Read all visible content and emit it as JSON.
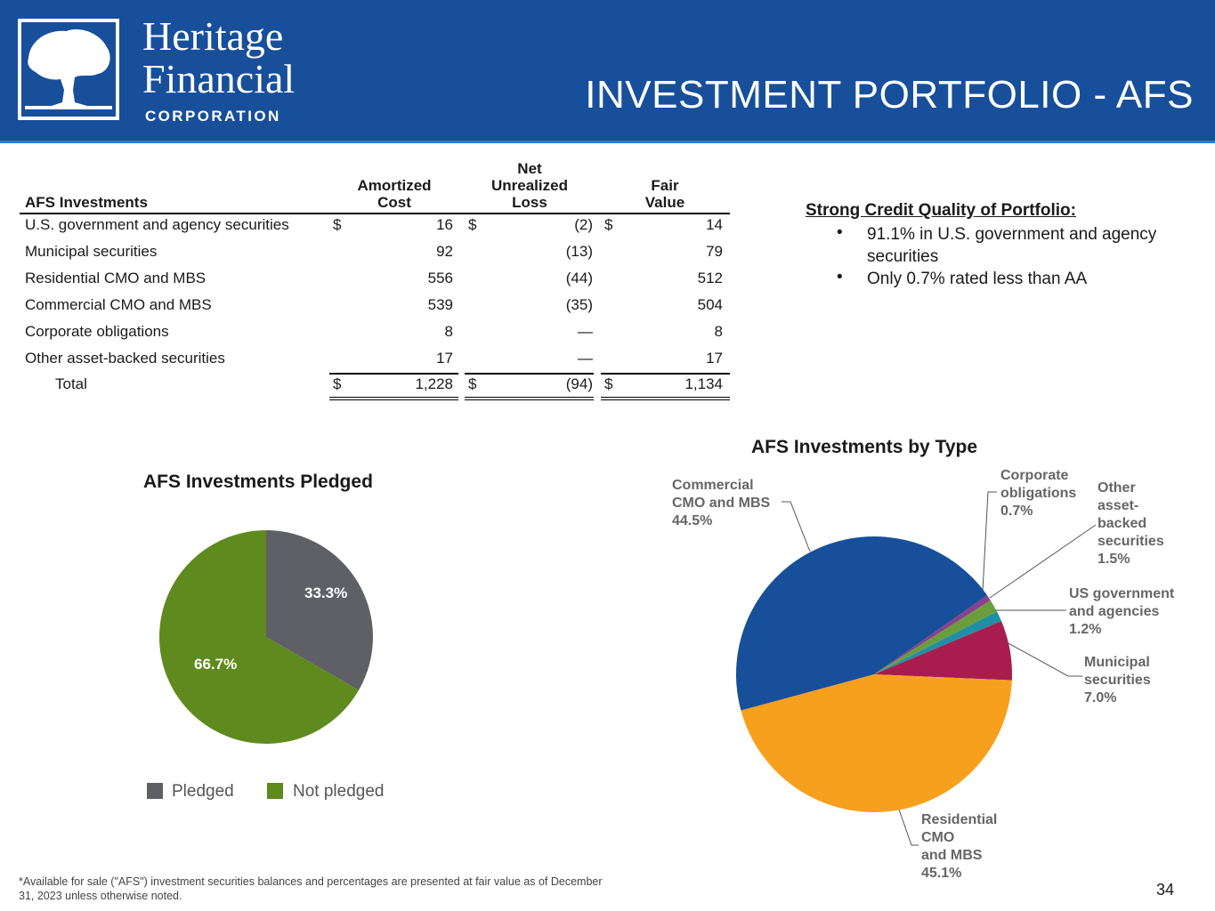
{
  "header": {
    "logo_line1": "Heritage",
    "logo_line2": "Financial",
    "logo_line3": "CORPORATION",
    "title": "INVESTMENT PORTFOLIO - AFS",
    "colors": {
      "background": "#174f9a",
      "accent": "#2a7fbf"
    }
  },
  "table": {
    "col_label": "AFS Investments",
    "col_cost": "Amortized Cost",
    "col_cost_l1": "Amortized",
    "col_cost_l2": "Cost",
    "col_loss_l1": "Net",
    "col_loss_l2": "Unrealized",
    "col_loss_l3": "Loss",
    "col_fair_l1": "Fair",
    "col_fair_l2": "Value",
    "currency": "$",
    "rows": [
      {
        "label": "U.S. government and agency securities",
        "cost": "16",
        "loss": "(2)",
        "fair": "14"
      },
      {
        "label": "Municipal securities",
        "cost": "92",
        "loss": "(13)",
        "fair": "79"
      },
      {
        "label": "Residential CMO and MBS",
        "cost": "556",
        "loss": "(44)",
        "fair": "512"
      },
      {
        "label": "Commercial CMO and MBS",
        "cost": "539",
        "loss": "(35)",
        "fair": "504"
      },
      {
        "label": "Corporate obligations",
        "cost": "8",
        "loss": "—",
        "fair": "8"
      },
      {
        "label": "Other asset-backed securities",
        "cost": "17",
        "loss": "—",
        "fair": "17"
      }
    ],
    "total": {
      "label": "Total",
      "cost": "1,228",
      "loss": "(94)",
      "fair": "1,134"
    }
  },
  "credit": {
    "title": "Strong Credit Quality of Portfolio:",
    "bullet_char": "•",
    "bullets": [
      "91.1%  in U.S. government and agency securities",
      "Only 0.7% rated less than AA"
    ]
  },
  "chart_data": [
    {
      "type": "pie",
      "title": "AFS Investments Pledged",
      "categories": [
        "Pledged",
        "Not pledged"
      ],
      "values": [
        33.3,
        66.7
      ],
      "labels": [
        "33.3%",
        "66.7%"
      ],
      "colors": [
        "#5f6066",
        "#5f8a1e"
      ],
      "legend": "bottom"
    },
    {
      "type": "pie",
      "title": "AFS Investments by Type",
      "categories": [
        "Corporate obligations",
        "Other asset-backed securities",
        "US government and agencies",
        "Municipal securities",
        "Residential CMO and MBS",
        "Commercial CMO and MBS"
      ],
      "values": [
        0.7,
        1.5,
        1.2,
        7.0,
        45.1,
        44.5
      ],
      "colors": [
        "#8a3f8f",
        "#6a9e3c",
        "#1f8fa6",
        "#a81d4e",
        "#f7a01d",
        "#174f9a"
      ],
      "label_lines": [
        [
          "Corporate",
          "obligations",
          "0.7%"
        ],
        [
          "Other",
          "asset-",
          "backed",
          "securities",
          "1.5%"
        ],
        [
          "US government",
          "and agencies",
          "1.2%"
        ],
        [
          "Municipal",
          "securities",
          "7.0%"
        ],
        [
          "Residential",
          "CMO",
          "and MBS",
          "45.1%"
        ],
        [
          "Commercial",
          "CMO and MBS",
          "44.5%"
        ]
      ]
    }
  ],
  "footnote": "*Available for sale (\"AFS\") investment securities balances and percentages are presented at fair value as of December 31, 2023 unless otherwise noted.",
  "page_number": "34"
}
